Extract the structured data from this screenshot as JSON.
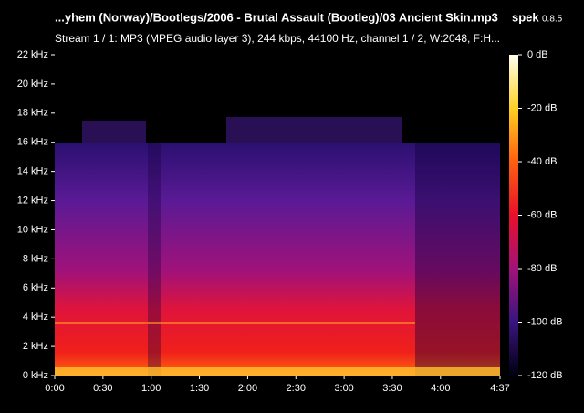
{
  "chart_data": {
    "type": "spectrogram",
    "title": "...yhem (Norway)/Bootlegs/2006 - Brutal Assault (Bootleg)/03 Ancient Skin.mp3",
    "app_name": "spek",
    "app_version": "0.8.5",
    "subtitle": "Stream 1 / 1: MP3 (MPEG audio layer 3), 244 kbps, 44100 Hz, channel 1 / 2, W:2048, F:H...",
    "xlim": [
      0,
      277
    ],
    "xticks": [
      {
        "value": 0,
        "label": "0:00"
      },
      {
        "value": 30,
        "label": "0:30"
      },
      {
        "value": 60,
        "label": "1:00"
      },
      {
        "value": 90,
        "label": "1:30"
      },
      {
        "value": 120,
        "label": "2:00"
      },
      {
        "value": 150,
        "label": "2:30"
      },
      {
        "value": 180,
        "label": "3:00"
      },
      {
        "value": 210,
        "label": "3:30"
      },
      {
        "value": 240,
        "label": "4:00"
      },
      {
        "value": 277,
        "label": "4:37"
      }
    ],
    "ylim": [
      0,
      22
    ],
    "yticks": [
      {
        "value": 0,
        "label": "0 kHz"
      },
      {
        "value": 2,
        "label": "2 kHz"
      },
      {
        "value": 4,
        "label": "4 kHz"
      },
      {
        "value": 6,
        "label": "6 kHz"
      },
      {
        "value": 8,
        "label": "8 kHz"
      },
      {
        "value": 10,
        "label": "10 kHz"
      },
      {
        "value": 12,
        "label": "12 kHz"
      },
      {
        "value": 14,
        "label": "14 kHz"
      },
      {
        "value": 16,
        "label": "16 kHz"
      },
      {
        "value": 18,
        "label": "18 kHz"
      },
      {
        "value": 20,
        "label": "20 kHz"
      },
      {
        "value": 22,
        "label": "22 kHz"
      }
    ],
    "clim": [
      -120,
      0
    ],
    "cticks": [
      {
        "value": 0,
        "label": "0 dB"
      },
      {
        "value": -20,
        "label": "-20 dB"
      },
      {
        "value": -40,
        "label": "-40 dB"
      },
      {
        "value": -60,
        "label": "-60 dB"
      },
      {
        "value": -80,
        "label": "-80 dB"
      },
      {
        "value": -100,
        "label": "-100 dB"
      },
      {
        "value": -120,
        "label": "-120 dB"
      }
    ]
  }
}
